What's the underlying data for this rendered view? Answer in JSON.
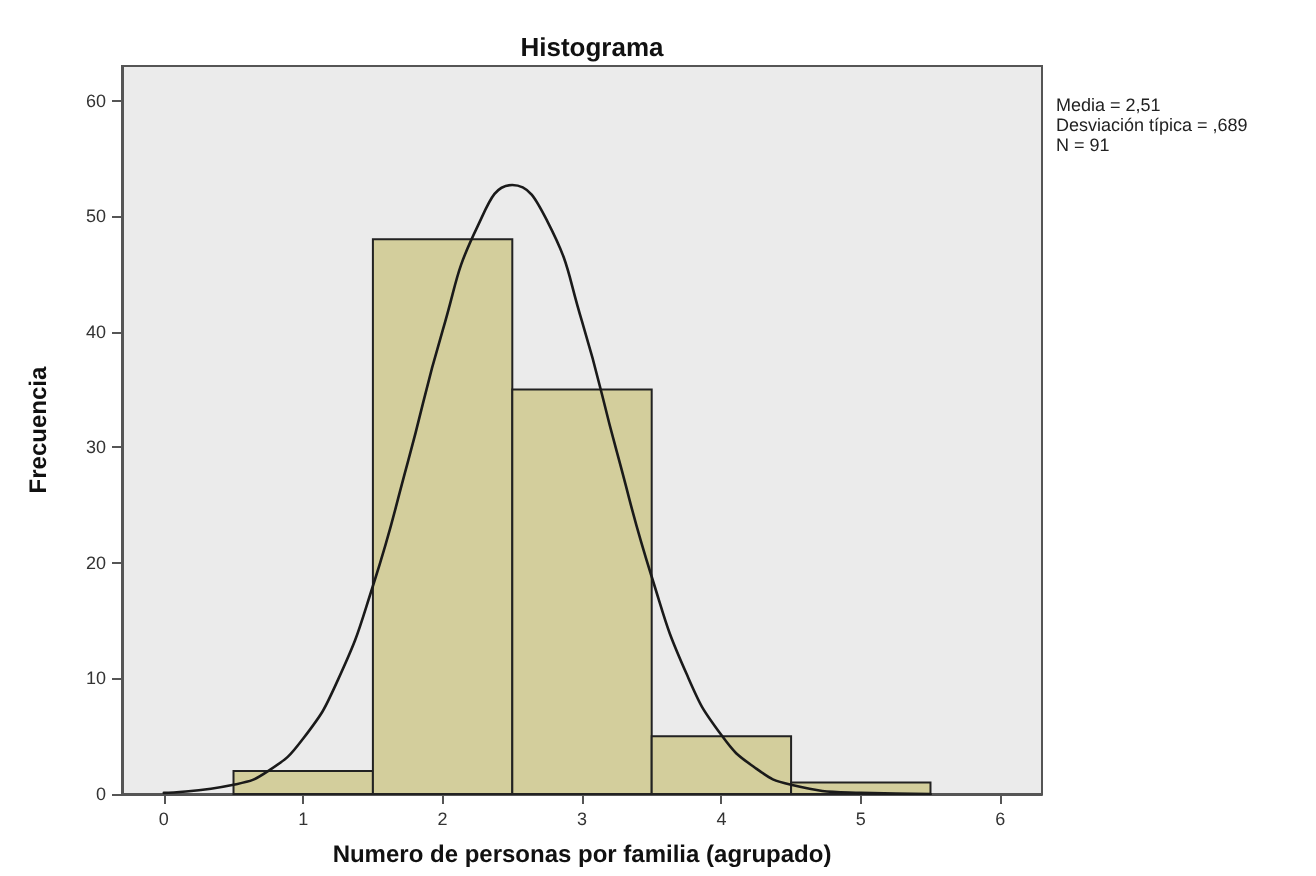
{
  "chart_data": {
    "type": "histogram",
    "title": "Histograma",
    "xlabel": "Numero de personas por familia (agrupado)",
    "ylabel": "Frecuencia",
    "bins": [
      0.5,
      1.5,
      2.5,
      3.5,
      4.5,
      5.5
    ],
    "values": [
      2,
      48,
      35,
      5,
      1
    ],
    "color": "#d3ce9c",
    "series": [
      {
        "type": "line",
        "color": "#1a1a1a",
        "x": [
          0,
          0.5,
          0.75,
          1,
          1.25,
          1.5,
          1.75,
          2,
          2.25,
          2.5,
          2.75,
          3,
          3.25,
          3.5,
          3.75,
          4,
          4.25,
          4.5,
          5,
          5.5
        ],
        "values": [
          0.1,
          0.8,
          2,
          4.8,
          9.9,
          18,
          28.7,
          40.1,
          49.1,
          52.7,
          49.6,
          40.9,
          29.6,
          18.8,
          10.4,
          5.1,
          2.2,
          0.8,
          0.1,
          0
        ]
      }
    ],
    "xlim": [
      -0.3,
      6.3
    ],
    "xticks": [
      0,
      1,
      2,
      3,
      4,
      5,
      6
    ],
    "ylim": [
      0,
      63
    ],
    "yticks": [
      0,
      10,
      20,
      30,
      40,
      50,
      60
    ],
    "annotations": [
      "Media = 2,51",
      "Desviación típica = ,689",
      "N = 91"
    ],
    "grid": false
  }
}
